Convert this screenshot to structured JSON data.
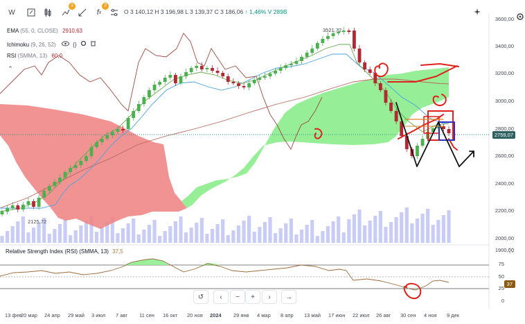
{
  "toolbar": {
    "symbol_button": "W",
    "indicators_badge": "3",
    "fx_badge": "3"
  },
  "ohlc": {
    "text": "О 3 140,12  Н 3 196,98  L 3 139,37  C 3 186,06",
    "change": "↑ 1,46%",
    "volume": "V 289B"
  },
  "indicators": {
    "ema_name": "EMA",
    "ema_params": "(55, 0, CLOSE)",
    "ema_value": "2910,63",
    "ichimoku_name": "Ichimoku",
    "ichimoku_params": "(9, 26, 52)",
    "rsi_name": "RSI",
    "rsi_params": "(SMMA, 13)",
    "rsi_value": "60,0"
  },
  "price_axis": [
    "3600,00",
    "3400,00",
    "3200,00",
    "3000,00",
    "2800,00",
    "2600,00",
    "2400,00",
    "2200,00",
    "2000,00",
    "1900,00"
  ],
  "current_price": "2759,07",
  "high_label": "3521,72",
  "low_label": "2125,72",
  "rsi_pane": {
    "title": "Relative Strength Index (RSI) (SMMA, 13)",
    "value": "37,5",
    "axis": [
      "100",
      "75",
      "50",
      "25",
      "0"
    ],
    "current": "37"
  },
  "date_axis": [
    "13 фев",
    "20 мар",
    "24 апр",
    "29 май",
    "3 июл",
    "7 авг",
    "11 сен",
    "16 окт",
    "20 ноя",
    "2024",
    "29 янв",
    "4 мар",
    "8 апр",
    "13 май",
    "17 июн",
    "22 июл",
    "26 авг",
    "30 сен",
    "4 ноя",
    "9 дек"
  ],
  "nav": {
    "reset": "↺",
    "left": "‹",
    "minus": "−",
    "plus": "+",
    "right": "›",
    "end": "→"
  },
  "colors": {
    "cloud_bull": "#90ee90",
    "cloud_bear": "#f08080",
    "candle_up": "#4caf50",
    "candle_down": "#b22833",
    "volume": "#c9cdf5",
    "drawing_red": "#e0201a"
  }
}
